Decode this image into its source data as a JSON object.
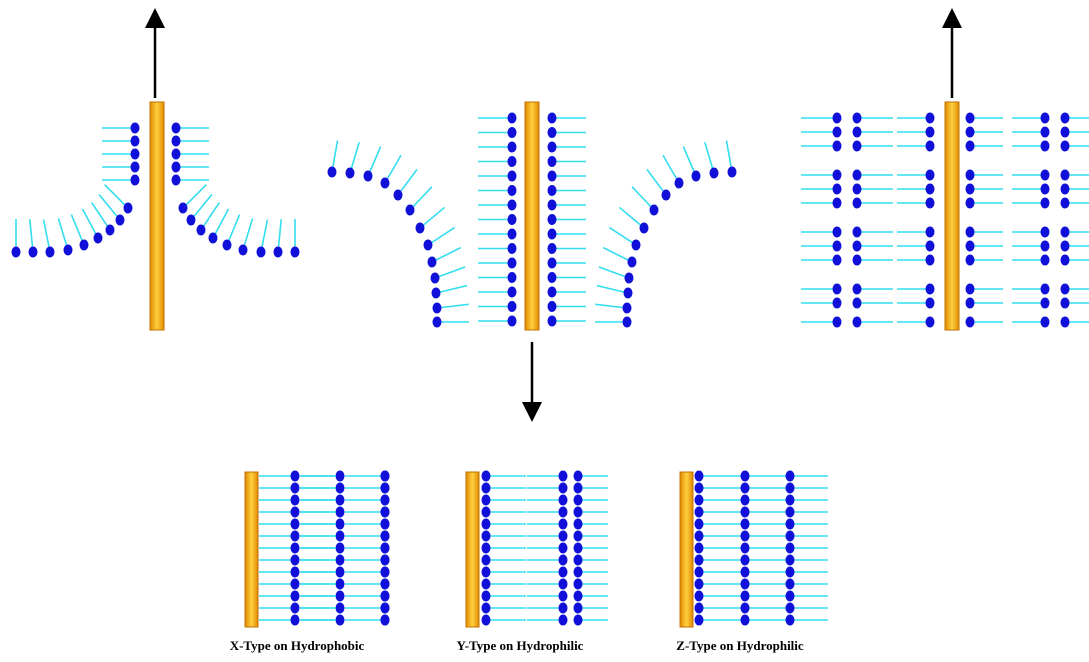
{
  "captions": [
    "X-Type on Hydrophobic",
    "Y-Type on Hydrophilic",
    "Z-Type on Hydrophilic"
  ]
}
